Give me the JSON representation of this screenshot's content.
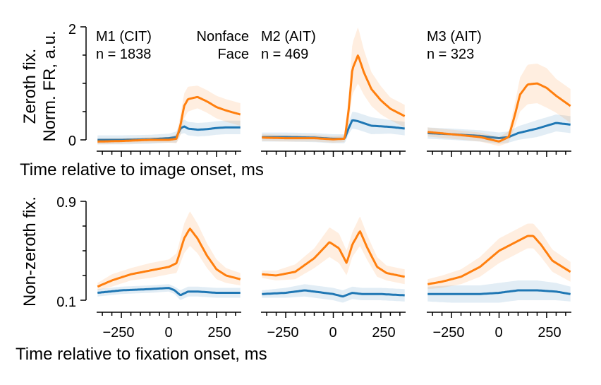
{
  "colors": {
    "nonface": "#1f77b4",
    "face": "#ff7f0e",
    "axis": "#000000"
  },
  "figure": {
    "row_labels": {
      "top_line1": "Zeroth fix.",
      "top_line2": "Norm. FR, a.u.",
      "bottom": "Non-zeroth fix."
    },
    "xlabels": {
      "top": "Time relative to image onset, ms",
      "bottom": "Time relative to fixation onset, ms"
    },
    "legend": {
      "nonface": "Nonface",
      "face": "Face"
    },
    "panel_titles": [
      {
        "name": "M1 (CIT)",
        "n": "n = 1838"
      },
      {
        "name": "M2 (AIT)",
        "n": "n = 469"
      },
      {
        "name": "M3 (AIT)",
        "n": "n = 323"
      }
    ],
    "top_yticks": [
      "2",
      "0"
    ],
    "bottom_yticks": [
      "0.9",
      "0.1"
    ],
    "bottom_xticks": [
      "−250",
      "0",
      "250"
    ]
  },
  "chart_data": [
    {
      "type": "line",
      "row": "Zeroth fix.",
      "panel": "M1 (CIT)",
      "xlim": [
        -380,
        380
      ],
      "ylim": [
        -0.15,
        2
      ],
      "series": [
        {
          "name": "Nonface",
          "x": [
            -375,
            -250,
            -100,
            0,
            40,
            60,
            80,
            100,
            150,
            200,
            250,
            300,
            375
          ],
          "y": [
            0.0,
            0.0,
            0.01,
            0.03,
            0.05,
            0.2,
            0.24,
            0.2,
            0.18,
            0.19,
            0.21,
            0.22,
            0.22
          ],
          "band": [
            0.08,
            0.08,
            0.08,
            0.08,
            0.1,
            0.1,
            0.12,
            0.12,
            0.12,
            0.12,
            0.12,
            0.12,
            0.12
          ]
        },
        {
          "name": "Face",
          "x": [
            -375,
            -250,
            -100,
            0,
            40,
            60,
            80,
            100,
            150,
            200,
            250,
            300,
            375
          ],
          "y": [
            -0.03,
            -0.02,
            0.0,
            0.0,
            0.02,
            0.25,
            0.6,
            0.72,
            0.76,
            0.68,
            0.58,
            0.52,
            0.45
          ],
          "band": [
            0.05,
            0.05,
            0.05,
            0.05,
            0.08,
            0.18,
            0.22,
            0.22,
            0.2,
            0.2,
            0.2,
            0.2,
            0.2
          ]
        }
      ]
    },
    {
      "type": "line",
      "row": "Zeroth fix.",
      "panel": "M2 (AIT)",
      "xlim": [
        -380,
        380
      ],
      "ylim": [
        -0.15,
        2
      ],
      "series": [
        {
          "name": "Nonface",
          "x": [
            -375,
            -250,
            -100,
            0,
            60,
            80,
            100,
            130,
            200,
            300,
            375
          ],
          "y": [
            0.05,
            0.05,
            0.04,
            0.02,
            0.02,
            0.2,
            0.35,
            0.33,
            0.25,
            0.23,
            0.2
          ],
          "band": [
            0.08,
            0.08,
            0.08,
            0.08,
            0.08,
            0.1,
            0.15,
            0.15,
            0.15,
            0.12,
            0.12
          ]
        },
        {
          "name": "Face",
          "x": [
            -375,
            -250,
            -100,
            0,
            60,
            80,
            100,
            130,
            160,
            200,
            250,
            300,
            375
          ],
          "y": [
            0.04,
            0.03,
            0.03,
            0.01,
            0.02,
            0.5,
            1.25,
            1.5,
            1.2,
            0.9,
            0.7,
            0.55,
            0.42
          ],
          "band": [
            0.06,
            0.06,
            0.06,
            0.06,
            0.06,
            0.25,
            0.45,
            0.5,
            0.4,
            0.3,
            0.25,
            0.2,
            0.2
          ]
        }
      ]
    },
    {
      "type": "line",
      "row": "Zeroth fix.",
      "panel": "M3 (AIT)",
      "xlim": [
        -380,
        380
      ],
      "ylim": [
        -0.15,
        2
      ],
      "series": [
        {
          "name": "Nonface",
          "x": [
            -375,
            -250,
            -100,
            0,
            50,
            100,
            200,
            300,
            375
          ],
          "y": [
            0.12,
            0.1,
            0.07,
            0.03,
            0.05,
            0.12,
            0.2,
            0.3,
            0.27
          ],
          "band": [
            0.1,
            0.1,
            0.1,
            0.1,
            0.1,
            0.12,
            0.15,
            0.15,
            0.15
          ]
        },
        {
          "name": "Face",
          "x": [
            -375,
            -250,
            -100,
            0,
            50,
            80,
            110,
            150,
            200,
            250,
            300,
            375
          ],
          "y": [
            0.14,
            0.1,
            0.05,
            -0.03,
            0.05,
            0.4,
            0.8,
            0.98,
            1.0,
            0.92,
            0.78,
            0.6
          ],
          "band": [
            0.08,
            0.08,
            0.08,
            0.08,
            0.1,
            0.2,
            0.3,
            0.35,
            0.35,
            0.35,
            0.3,
            0.3
          ]
        }
      ]
    },
    {
      "type": "line",
      "row": "Non-zeroth fix.",
      "panel": "M1 (CIT)",
      "xlim": [
        -380,
        380
      ],
      "ylim": [
        0.1,
        0.9
      ],
      "series": [
        {
          "name": "Nonface",
          "x": [
            -375,
            -250,
            -100,
            0,
            30,
            60,
            100,
            150,
            250,
            375
          ],
          "y": [
            0.16,
            0.18,
            0.19,
            0.2,
            0.18,
            0.14,
            0.17,
            0.17,
            0.16,
            0.16
          ],
          "band": [
            0.03,
            0.03,
            0.03,
            0.03,
            0.03,
            0.04,
            0.04,
            0.04,
            0.04,
            0.04
          ]
        },
        {
          "name": "Face",
          "x": [
            -375,
            -300,
            -200,
            -100,
            0,
            40,
            80,
            110,
            150,
            200,
            250,
            300,
            375
          ],
          "y": [
            0.21,
            0.26,
            0.31,
            0.34,
            0.37,
            0.4,
            0.6,
            0.68,
            0.6,
            0.46,
            0.35,
            0.3,
            0.27
          ],
          "band": [
            0.03,
            0.05,
            0.05,
            0.06,
            0.06,
            0.08,
            0.12,
            0.14,
            0.12,
            0.1,
            0.08,
            0.06,
            0.05
          ]
        }
      ]
    },
    {
      "type": "line",
      "row": "Non-zeroth fix.",
      "panel": "M2 (AIT)",
      "xlim": [
        -380,
        380
      ],
      "ylim": [
        0.1,
        0.9
      ],
      "series": [
        {
          "name": "Nonface",
          "x": [
            -375,
            -250,
            -150,
            -50,
            0,
            50,
            100,
            150,
            250,
            375
          ],
          "y": [
            0.15,
            0.16,
            0.18,
            0.16,
            0.15,
            0.13,
            0.16,
            0.15,
            0.15,
            0.14
          ],
          "band": [
            0.03,
            0.04,
            0.05,
            0.05,
            0.05,
            0.05,
            0.05,
            0.05,
            0.05,
            0.05
          ]
        },
        {
          "name": "Face",
          "x": [
            -375,
            -300,
            -200,
            -100,
            -20,
            30,
            70,
            100,
            140,
            180,
            230,
            280,
            375
          ],
          "y": [
            0.31,
            0.3,
            0.33,
            0.44,
            0.57,
            0.52,
            0.4,
            0.55,
            0.66,
            0.52,
            0.37,
            0.32,
            0.29
          ],
          "band": [
            0.03,
            0.04,
            0.06,
            0.08,
            0.12,
            0.12,
            0.1,
            0.1,
            0.12,
            0.1,
            0.08,
            0.06,
            0.06
          ]
        }
      ]
    },
    {
      "type": "line",
      "row": "Non-zeroth fix.",
      "panel": "M3 (AIT)",
      "xlim": [
        -380,
        380
      ],
      "ylim": [
        0.1,
        0.9
      ],
      "series": [
        {
          "name": "Nonface",
          "x": [
            -375,
            -250,
            -100,
            0,
            100,
            200,
            300,
            375
          ],
          "y": [
            0.15,
            0.15,
            0.15,
            0.16,
            0.18,
            0.18,
            0.17,
            0.15
          ],
          "band": [
            0.06,
            0.07,
            0.07,
            0.08,
            0.08,
            0.08,
            0.07,
            0.06
          ]
        },
        {
          "name": "Face",
          "x": [
            -375,
            -300,
            -200,
            -100,
            0,
            50,
            100,
            150,
            180,
            220,
            280,
            375
          ],
          "y": [
            0.23,
            0.25,
            0.29,
            0.37,
            0.5,
            0.54,
            0.58,
            0.62,
            0.62,
            0.55,
            0.42,
            0.33
          ],
          "band": [
            0.04,
            0.05,
            0.06,
            0.08,
            0.1,
            0.1,
            0.1,
            0.1,
            0.1,
            0.1,
            0.09,
            0.08
          ]
        }
      ]
    }
  ]
}
